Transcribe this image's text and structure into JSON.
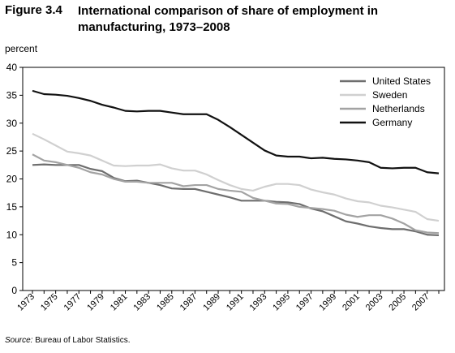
{
  "figure": {
    "label": "Figure 3.4",
    "title": "International comparison of share of employment in manufacturing, 1973–2008"
  },
  "source": {
    "label": "Source:",
    "text": "Bureau of Labor Statistics."
  },
  "chart_data": {
    "type": "line",
    "title": "International comparison of share of employment in manufacturing, 1973–2008",
    "ylabel": "percent",
    "xlabel": "",
    "ylim": [
      0,
      40
    ],
    "yticks": [
      0,
      5,
      10,
      15,
      20,
      25,
      30,
      35,
      40
    ],
    "xlim": [
      1973,
      2008
    ],
    "xtick_labels": [
      "1973",
      "1975",
      "1977",
      "1979",
      "1981",
      "1983",
      "1985",
      "1987",
      "1989",
      "1991",
      "1993",
      "1995",
      "1997",
      "1999",
      "2001",
      "2003",
      "2005",
      "2007"
    ],
    "grid": false,
    "legend_position": "top-right",
    "x": [
      1973,
      1974,
      1975,
      1976,
      1977,
      1978,
      1979,
      1980,
      1981,
      1982,
      1983,
      1984,
      1985,
      1986,
      1987,
      1988,
      1989,
      1990,
      1991,
      1992,
      1993,
      1994,
      1995,
      1996,
      1997,
      1998,
      1999,
      2000,
      2001,
      2002,
      2003,
      2004,
      2005,
      2006,
      2007,
      2008
    ],
    "series": [
      {
        "name": "United States",
        "color": "#6e6e6e",
        "values": [
          22.5,
          22.6,
          22.5,
          22.5,
          22.5,
          21.8,
          21.4,
          20.2,
          19.6,
          19.7,
          19.3,
          18.9,
          18.3,
          18.2,
          18.2,
          17.7,
          17.2,
          16.7,
          16.1,
          16.1,
          16.1,
          15.9,
          15.8,
          15.5,
          14.7,
          14.2,
          13.3,
          12.4,
          12.0,
          11.5,
          11.2,
          11.0,
          11.0,
          10.6,
          10.0,
          9.9
        ]
      },
      {
        "name": "Sweden",
        "color": "#d0d0d0",
        "values": [
          28.1,
          27.1,
          26.0,
          24.9,
          24.6,
          24.2,
          23.3,
          22.4,
          22.3,
          22.4,
          22.4,
          22.6,
          21.9,
          21.5,
          21.5,
          20.8,
          19.8,
          18.9,
          18.2,
          17.9,
          18.6,
          19.1,
          19.1,
          18.9,
          18.1,
          17.6,
          17.2,
          16.5,
          16.0,
          15.8,
          15.2,
          14.9,
          14.5,
          14.1,
          12.8,
          12.5
        ]
      },
      {
        "name": "Netherlands",
        "color": "#a3a3a3",
        "values": [
          24.4,
          23.3,
          23.0,
          22.5,
          22.0,
          21.2,
          20.8,
          20.0,
          19.5,
          19.5,
          19.3,
          19.3,
          19.3,
          18.7,
          18.9,
          18.9,
          18.2,
          17.9,
          17.7,
          16.6,
          16.1,
          15.6,
          15.5,
          15.0,
          14.8,
          14.6,
          14.3,
          13.6,
          13.2,
          13.5,
          13.5,
          12.9,
          12.0,
          10.8,
          10.4,
          10.3
        ]
      },
      {
        "name": "Germany",
        "color": "#111111",
        "values": [
          35.8,
          35.2,
          35.1,
          34.9,
          34.5,
          34.0,
          33.3,
          32.8,
          32.2,
          32.1,
          32.2,
          32.2,
          31.9,
          31.6,
          31.6,
          31.6,
          30.6,
          29.3,
          27.9,
          26.5,
          25.1,
          24.2,
          24.0,
          24.0,
          23.7,
          23.8,
          23.6,
          23.5,
          23.3,
          23.0,
          22.0,
          21.9,
          22.0,
          22.0,
          21.2,
          21.0
        ]
      }
    ]
  }
}
